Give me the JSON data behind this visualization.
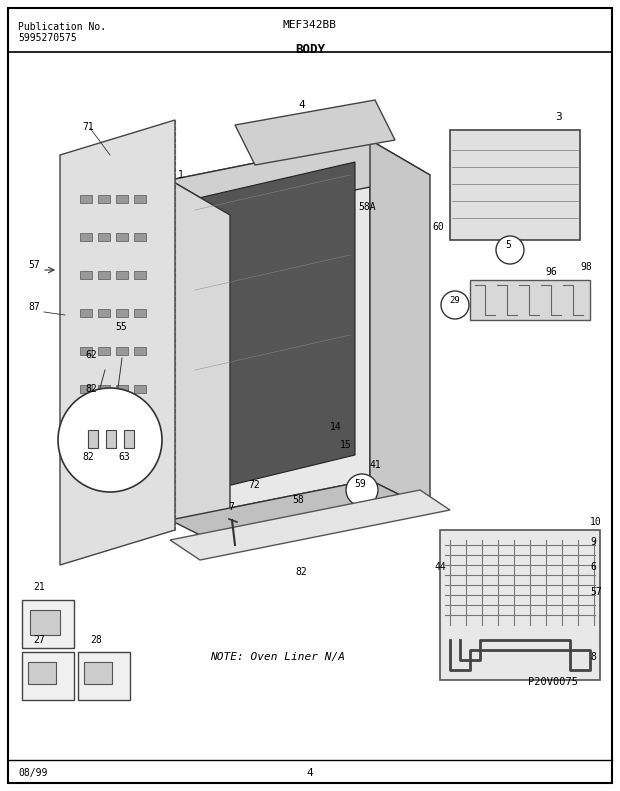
{
  "title_left_line1": "Publication No.",
  "title_left_line2": "5995270575",
  "title_center": "MEF342BB",
  "title_body": "BODY",
  "footer_left": "08/99",
  "footer_center": "4",
  "page_bg": "#ffffff",
  "border_color": "#000000",
  "text_color": "#000000",
  "figsize": [
    6.2,
    7.91
  ],
  "dpi": 100
}
